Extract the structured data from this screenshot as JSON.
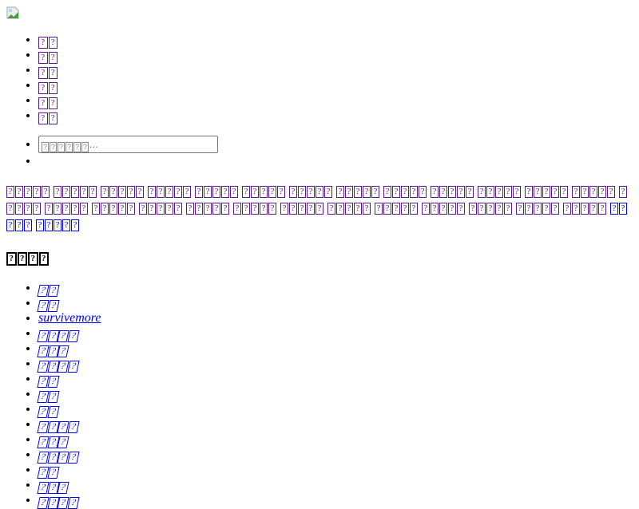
{
  "logo": {
    "icon": "broken-image-icon"
  },
  "nav": [
    "??",
    "??",
    "??",
    "??",
    "??",
    "??"
  ],
  "search": {
    "placeholder": "??????..."
  },
  "links": {
    "visited": [
      "?????",
      "?????",
      "?????",
      "?????",
      "?????",
      "?????",
      "?????",
      "?????",
      "?????",
      "?????",
      "?????",
      "?????",
      "?????",
      "?????",
      "?????",
      "?????",
      "?????",
      "?????",
      "?????",
      "?????",
      "?????",
      "?????",
      "?????",
      "?????",
      "?????",
      "?????"
    ],
    "unvisited": [
      "?????",
      "?????"
    ]
  },
  "section_title": "????",
  "tags": [
    "??",
    "??",
    "survivemore",
    "????",
    "???",
    "????",
    "??",
    "??",
    "??",
    "????",
    "???",
    "????",
    "??",
    "???",
    "????"
  ],
  "colors": {
    "link": "#0000ee",
    "visited": "#551a8b"
  }
}
